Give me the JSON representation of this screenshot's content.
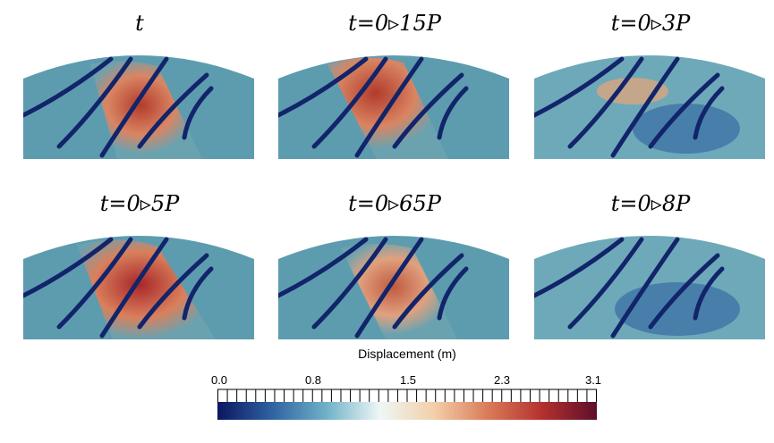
{
  "panels": [
    {
      "title": "t"
    },
    {
      "title": "t=0▹15P"
    },
    {
      "title": "t=0▹3P"
    },
    {
      "title": "t=0▹5P"
    },
    {
      "title": "t=0▹65P"
    },
    {
      "title": "t=0▹8P"
    }
  ],
  "colorbar": {
    "title": "Displacement (m)",
    "ticks": [
      "0.0",
      "0.8",
      "1.5",
      "2.3",
      "3.1"
    ],
    "colors": [
      "#0c1660",
      "#2f62a0",
      "#6fb0c8",
      "#eef7f6",
      "#f2cfa8",
      "#d97a58",
      "#b3302f",
      "#5e0f2b"
    ]
  }
}
